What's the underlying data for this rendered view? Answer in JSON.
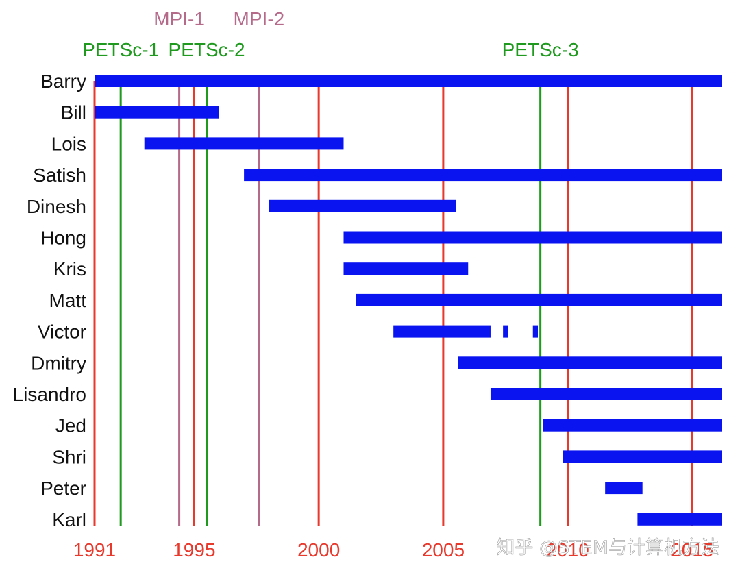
{
  "chart_data": {
    "type": "timeline",
    "title": "",
    "xlabel": "",
    "ylabel": "",
    "xlim": [
      1991,
      2016.2
    ],
    "colors": {
      "bar": "#0a14f0",
      "year_line": "#e8392d",
      "mpi_line": "#b56a8a",
      "petsc_line": "#1f9a1f",
      "year_label": "#e8392d",
      "mpi_label": "#b56a8a",
      "petsc_label": "#1f9a1f",
      "name_label": "#111111",
      "watermark": "#ffffff"
    },
    "year_ticks": [
      {
        "value": 1991,
        "label": "1991"
      },
      {
        "value": 1995,
        "label": "1995"
      },
      {
        "value": 2000,
        "label": "2000"
      },
      {
        "value": 2005,
        "label": "2005"
      },
      {
        "value": 2010,
        "label": "2010"
      },
      {
        "value": 2015,
        "label": "2015"
      }
    ],
    "events": [
      {
        "name": "MPI-1",
        "year": 1994.4,
        "kind": "mpi"
      },
      {
        "name": "MPI-2",
        "year": 1997.6,
        "kind": "mpi"
      },
      {
        "name": "PETSc-1",
        "year": 1992.05,
        "kind": "petsc"
      },
      {
        "name": "PETSc-2",
        "year": 1995.5,
        "kind": "petsc"
      },
      {
        "name": "PETSc-3",
        "year": 2008.9,
        "kind": "petsc"
      }
    ],
    "people": [
      {
        "name": "Barry",
        "spans": [
          [
            1991.0,
            2016.2
          ]
        ]
      },
      {
        "name": "Bill",
        "spans": [
          [
            1991.0,
            1996.0
          ]
        ]
      },
      {
        "name": "Lois",
        "spans": [
          [
            1993.0,
            2001.0
          ]
        ]
      },
      {
        "name": "Satish",
        "spans": [
          [
            1997.0,
            2016.2
          ]
        ]
      },
      {
        "name": "Dinesh",
        "spans": [
          [
            1998.0,
            2005.5
          ]
        ]
      },
      {
        "name": "Hong",
        "spans": [
          [
            2001.0,
            2016.2
          ]
        ]
      },
      {
        "name": "Kris",
        "spans": [
          [
            2001.0,
            2006.0
          ]
        ]
      },
      {
        "name": "Matt",
        "spans": [
          [
            2001.5,
            2016.2
          ]
        ]
      },
      {
        "name": "Victor",
        "spans": [
          [
            2003.0,
            2006.9
          ],
          [
            2007.4,
            2007.6
          ],
          [
            2008.6,
            2008.8
          ]
        ]
      },
      {
        "name": "Dmitry",
        "spans": [
          [
            2005.6,
            2016.2
          ]
        ]
      },
      {
        "name": "Lisandro",
        "spans": [
          [
            2006.9,
            2016.2
          ]
        ]
      },
      {
        "name": "Jed",
        "spans": [
          [
            2009.0,
            2016.2
          ]
        ]
      },
      {
        "name": "Shri",
        "spans": [
          [
            2009.8,
            2016.2
          ]
        ]
      },
      {
        "name": "Peter",
        "spans": [
          [
            2011.5,
            2013.0
          ]
        ]
      },
      {
        "name": "Karl",
        "spans": [
          [
            2012.8,
            2016.2
          ]
        ]
      }
    ]
  },
  "watermark": "知乎 @STEM与计算机方法"
}
